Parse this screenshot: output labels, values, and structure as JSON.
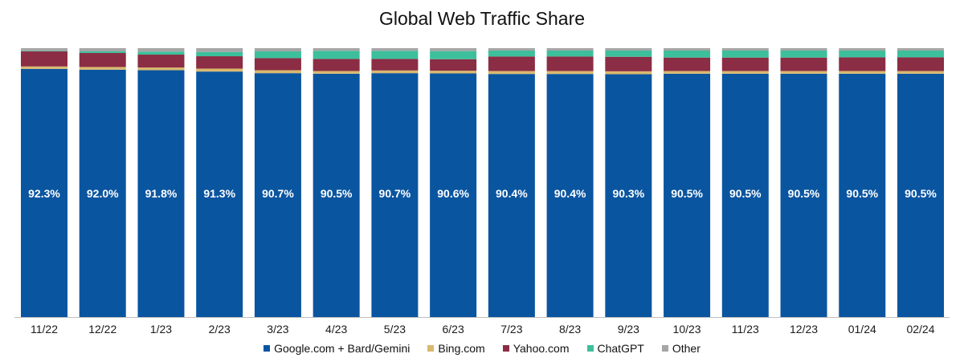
{
  "chart_data": {
    "type": "bar",
    "stacked": true,
    "title": "Global Web Traffic Share",
    "xlabel": "",
    "ylabel": "",
    "ylim": [
      0,
      100
    ],
    "grid": false,
    "legend_position": "bottom",
    "categories": [
      "11/22",
      "12/22",
      "1/23",
      "2/23",
      "3/23",
      "4/23",
      "5/23",
      "6/23",
      "7/23",
      "8/23",
      "9/23",
      "10/23",
      "11/23",
      "12/23",
      "01/24",
      "02/24"
    ],
    "series": [
      {
        "name": "Google.com + Bard/Gemini",
        "color": "#0a55a0",
        "values": [
          92.3,
          92.0,
          91.8,
          91.3,
          90.7,
          90.5,
          90.7,
          90.6,
          90.4,
          90.4,
          90.3,
          90.5,
          90.5,
          90.5,
          90.5,
          90.5
        ],
        "labels": [
          "92.3%",
          "92.0%",
          "91.8%",
          "91.3%",
          "90.7%",
          "90.5%",
          "90.7%",
          "90.6%",
          "90.4%",
          "90.4%",
          "90.3%",
          "90.5%",
          "90.5%",
          "90.5%",
          "90.5%",
          "90.5%"
        ]
      },
      {
        "name": "Bing.com",
        "color": "#d9b96e",
        "values": [
          0.9,
          1.0,
          1.0,
          1.1,
          1.1,
          1.0,
          1.0,
          1.0,
          1.1,
          1.1,
          1.1,
          1.0,
          1.0,
          1.0,
          1.0,
          1.0
        ]
      },
      {
        "name": "Yahoo.com",
        "color": "#8b2d44",
        "values": [
          5.6,
          5.2,
          4.8,
          4.6,
          4.5,
          4.5,
          4.3,
          4.3,
          5.4,
          5.4,
          5.4,
          5.0,
          5.0,
          5.0,
          5.1,
          5.1
        ]
      },
      {
        "name": "ChatGPT",
        "color": "#3dbf9c",
        "values": [
          0.2,
          0.6,
          1.1,
          1.6,
          2.5,
          3.0,
          3.0,
          3.0,
          2.2,
          2.2,
          2.3,
          2.6,
          2.6,
          2.6,
          2.5,
          2.5
        ]
      },
      {
        "name": "Other",
        "color": "#a6a6a6",
        "values": [
          1.0,
          1.2,
          1.3,
          1.4,
          1.2,
          1.0,
          1.0,
          1.1,
          0.9,
          0.9,
          0.9,
          0.9,
          0.9,
          0.9,
          0.9,
          0.9
        ]
      }
    ]
  }
}
